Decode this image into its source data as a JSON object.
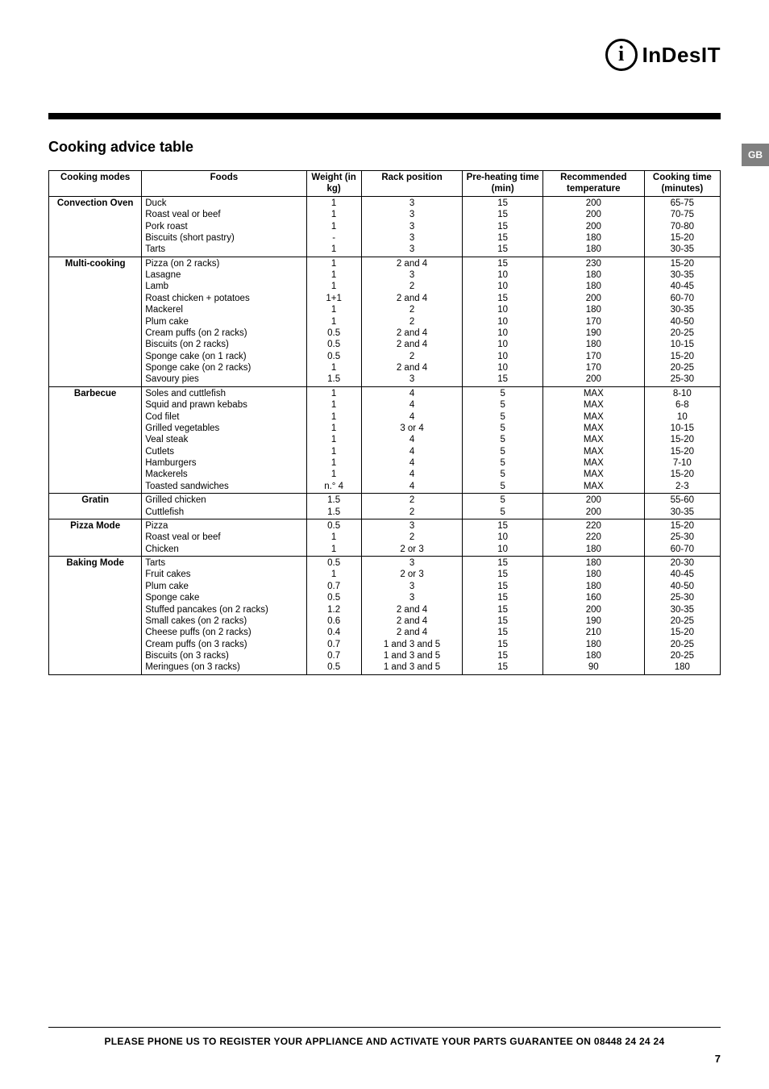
{
  "brand": {
    "icon_glyph": "i",
    "name": "InDesIT"
  },
  "lang_tab": "GB",
  "section_title": "Cooking advice table",
  "columns": [
    "Cooking modes",
    "Foods",
    "Weight (in kg)",
    "Rack position",
    "Pre-heating time (min)",
    "Recommended temperature",
    "Cooking time (minutes)"
  ],
  "groups": [
    {
      "mode": "Convection Oven",
      "rows": [
        {
          "food": "Duck",
          "weight": "1",
          "rack": "3",
          "preheat": "15",
          "temp": "200",
          "time": "65-75"
        },
        {
          "food": "Roast veal or beef",
          "weight": "1",
          "rack": "3",
          "preheat": "15",
          "temp": "200",
          "time": "70-75"
        },
        {
          "food": "Pork roast",
          "weight": "1",
          "rack": "3",
          "preheat": "15",
          "temp": "200",
          "time": "70-80"
        },
        {
          "food": "Biscuits (short pastry)",
          "weight": "-",
          "rack": "3",
          "preheat": "15",
          "temp": "180",
          "time": "15-20"
        },
        {
          "food": "Tarts",
          "weight": "1",
          "rack": "3",
          "preheat": "15",
          "temp": "180",
          "time": "30-35"
        }
      ]
    },
    {
      "mode": "Multi-cooking",
      "rows": [
        {
          "food": "Pizza (on 2 racks)",
          "weight": "1",
          "rack": "2 and 4",
          "preheat": "15",
          "temp": "230",
          "time": "15-20"
        },
        {
          "food": "Lasagne",
          "weight": "1",
          "rack": "3",
          "preheat": "10",
          "temp": "180",
          "time": "30-35"
        },
        {
          "food": "Lamb",
          "weight": "1",
          "rack": "2",
          "preheat": "10",
          "temp": "180",
          "time": "40-45"
        },
        {
          "food": "Roast chicken + potatoes",
          "weight": "1+1",
          "rack": "2 and 4",
          "preheat": "15",
          "temp": "200",
          "time": "60-70"
        },
        {
          "food": "Mackerel",
          "weight": "1",
          "rack": "2",
          "preheat": "10",
          "temp": "180",
          "time": "30-35"
        },
        {
          "food": "Plum cake",
          "weight": "1",
          "rack": "2",
          "preheat": "10",
          "temp": "170",
          "time": "40-50"
        },
        {
          "food": "Cream puffs (on 2 racks)",
          "weight": "0.5",
          "rack": "2 and 4",
          "preheat": "10",
          "temp": "190",
          "time": "20-25"
        },
        {
          "food": "Biscuits (on 2 racks)",
          "weight": "0.5",
          "rack": "2 and 4",
          "preheat": "10",
          "temp": "180",
          "time": "10-15"
        },
        {
          "food": "Sponge cake (on 1 rack)",
          "weight": "0.5",
          "rack": "2",
          "preheat": "10",
          "temp": "170",
          "time": "15-20"
        },
        {
          "food": "Sponge cake (on 2 racks)",
          "weight": "1",
          "rack": "2 and 4",
          "preheat": "10",
          "temp": "170",
          "time": "20-25"
        },
        {
          "food": "Savoury pies",
          "weight": "1.5",
          "rack": "3",
          "preheat": "15",
          "temp": "200",
          "time": "25-30"
        }
      ]
    },
    {
      "mode": "Barbecue",
      "rows": [
        {
          "food": "Soles and cuttlefish",
          "weight": "1",
          "rack": "4",
          "preheat": "5",
          "temp": "MAX",
          "time": "8-10"
        },
        {
          "food": "Squid and prawn kebabs",
          "weight": "1",
          "rack": "4",
          "preheat": "5",
          "temp": "MAX",
          "time": "6-8"
        },
        {
          "food": "Cod filet",
          "weight": "1",
          "rack": "4",
          "preheat": "5",
          "temp": "MAX",
          "time": "10"
        },
        {
          "food": "Grilled vegetables",
          "weight": "1",
          "rack": "3 or 4",
          "preheat": "5",
          "temp": "MAX",
          "time": "10-15"
        },
        {
          "food": "Veal steak",
          "weight": "1",
          "rack": "4",
          "preheat": "5",
          "temp": "MAX",
          "time": "15-20"
        },
        {
          "food": "Cutlets",
          "weight": "1",
          "rack": "4",
          "preheat": "5",
          "temp": "MAX",
          "time": "15-20"
        },
        {
          "food": "Hamburgers",
          "weight": "1",
          "rack": "4",
          "preheat": "5",
          "temp": "MAX",
          "time": "7-10"
        },
        {
          "food": "Mackerels",
          "weight": "1",
          "rack": "4",
          "preheat": "5",
          "temp": "MAX",
          "time": "15-20"
        },
        {
          "food": "Toasted sandwiches",
          "weight": "n.° 4",
          "rack": "4",
          "preheat": "5",
          "temp": "MAX",
          "time": "2-3"
        }
      ]
    },
    {
      "mode": "Gratin",
      "rows": [
        {
          "food": "Grilled chicken",
          "weight": "1.5",
          "rack": "2",
          "preheat": "5",
          "temp": "200",
          "time": "55-60"
        },
        {
          "food": "Cuttlefish",
          "weight": "1.5",
          "rack": "2",
          "preheat": "5",
          "temp": "200",
          "time": "30-35"
        }
      ]
    },
    {
      "mode": "Pizza Mode",
      "rows": [
        {
          "food": "Pizza",
          "weight": "0.5",
          "rack": "3",
          "preheat": "15",
          "temp": "220",
          "time": "15-20"
        },
        {
          "food": "Roast veal or beef",
          "weight": "1",
          "rack": "2",
          "preheat": "10",
          "temp": "220",
          "time": "25-30"
        },
        {
          "food": "Chicken",
          "weight": "1",
          "rack": "2 or 3",
          "preheat": "10",
          "temp": "180",
          "time": "60-70"
        }
      ]
    },
    {
      "mode": "Baking Mode",
      "rows": [
        {
          "food": "Tarts",
          "weight": "0.5",
          "rack": "3",
          "preheat": "15",
          "temp": "180",
          "time": "20-30"
        },
        {
          "food": "Fruit cakes",
          "weight": "1",
          "rack": "2 or 3",
          "preheat": "15",
          "temp": "180",
          "time": "40-45"
        },
        {
          "food": "Plum cake",
          "weight": "0.7",
          "rack": "3",
          "preheat": "15",
          "temp": "180",
          "time": "40-50"
        },
        {
          "food": "Sponge cake",
          "weight": "0.5",
          "rack": "3",
          "preheat": "15",
          "temp": "160",
          "time": "25-30"
        },
        {
          "food": "Stuffed pancakes (on 2 racks)",
          "weight": "1.2",
          "rack": "2 and 4",
          "preheat": "15",
          "temp": "200",
          "time": "30-35"
        },
        {
          "food": "Small cakes (on 2 racks)",
          "weight": "0.6",
          "rack": "2 and 4",
          "preheat": "15",
          "temp": "190",
          "time": "20-25"
        },
        {
          "food": "Cheese puffs (on 2 racks)",
          "weight": "0.4",
          "rack": "2 and 4",
          "preheat": "15",
          "temp": "210",
          "time": "15-20"
        },
        {
          "food": "Cream puffs (on 3 racks)",
          "weight": "0.7",
          "rack": "1 and 3 and 5",
          "preheat": "15",
          "temp": "180",
          "time": "20-25"
        },
        {
          "food": "Biscuits (on 3 racks)",
          "weight": "0.7",
          "rack": "1 and 3 and 5",
          "preheat": "15",
          "temp": "180",
          "time": "20-25"
        },
        {
          "food": "Meringues (on 3 racks)",
          "weight": "0.5",
          "rack": "1 and 3 and 5",
          "preheat": "15",
          "temp": "90",
          "time": "180"
        }
      ]
    }
  ],
  "footer": "PLEASE PHONE US TO REGISTER YOUR APPLIANCE AND ACTIVATE YOUR PARTS GUARANTEE ON 08448 24 24 24",
  "page_number": "7"
}
